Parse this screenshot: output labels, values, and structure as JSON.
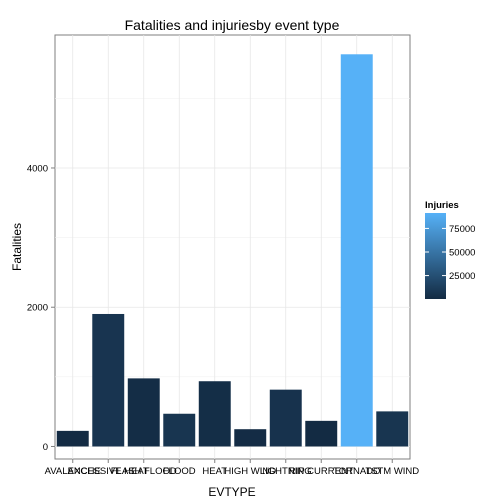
{
  "chart_data": {
    "type": "bar",
    "title": "Fatalities and injuriesby event type",
    "xlabel": "EVTYPE",
    "ylabel": "Fatalities",
    "categories": [
      "AVALANCHE",
      "EXCESSIVE HEAT",
      "FLASH FLOOD",
      "FLOOD",
      "HEAT",
      "HIGH WIND",
      "LIGHTNING",
      "RIP CURRENT",
      "TORNADO",
      "TSTM WIND"
    ],
    "values": [
      224,
      1903,
      978,
      470,
      937,
      248,
      816,
      368,
      5633,
      504
    ],
    "fill_values": [
      170,
      6525,
      1777,
      6789,
      2100,
      1137,
      5230,
      232,
      91346,
      6957
    ],
    "ylim": [
      -180,
      5910
    ],
    "yticks": [
      0,
      2000,
      4000
    ],
    "grid": true,
    "legend": {
      "title": "Injuries",
      "placement": "right",
      "ticks": [
        25000,
        50000,
        75000
      ],
      "range": [
        170,
        91346
      ],
      "low_color": "#132B43",
      "high_color": "#56B1F7"
    }
  }
}
